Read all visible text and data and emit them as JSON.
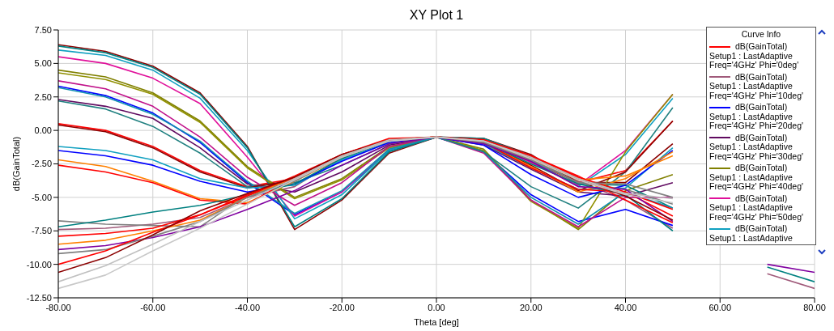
{
  "chart_data": {
    "type": "line",
    "title": "XY Plot 1",
    "xlabel": "Theta [deg]",
    "ylabel": "dB(GainTotal)",
    "legend_title": "Curve Info",
    "legend": "top right",
    "grid": true,
    "x": [
      -80,
      -70,
      -60,
      -50,
      -40,
      -30,
      -20,
      -10,
      0,
      10,
      20,
      30,
      40,
      50,
      60,
      70,
      80
    ],
    "xlim": [
      -80,
      80
    ],
    "xticks": [
      {
        "value": -80,
        "label": "-80.00"
      },
      {
        "value": -60,
        "label": "-60.00"
      },
      {
        "value": -40,
        "label": "-40.00"
      },
      {
        "value": -20,
        "label": "-20.00"
      },
      {
        "value": 0,
        "label": "0.00"
      },
      {
        "value": 20,
        "label": "20.00"
      },
      {
        "value": 40,
        "label": "40.00"
      },
      {
        "value": 60,
        "label": "60.00"
      },
      {
        "value": 80,
        "label": "80.00"
      }
    ],
    "ylim": [
      -12.5,
      7.5
    ],
    "yticks": [
      {
        "value": -12.5,
        "label": "-12.50"
      },
      {
        "value": -10,
        "label": "-10.00"
      },
      {
        "value": -7.5,
        "label": "-7.50"
      },
      {
        "value": -5,
        "label": "-5.00"
      },
      {
        "value": -2.5,
        "label": "-2.50"
      },
      {
        "value": 0,
        "label": "0.00"
      },
      {
        "value": 2.5,
        "label": "2.50"
      },
      {
        "value": 5,
        "label": "5.00"
      },
      {
        "value": 7.5,
        "label": "7.50"
      }
    ],
    "series": [
      {
        "name": "dB(GainTotal)\nSetup1 : LastAdaptive\nFreq='4GHz' Phi='0deg'",
        "color": "#ff0000",
        "values": [
          0.5,
          0.0,
          -1.2,
          -3.0,
          -4.2,
          -3.6,
          -1.9,
          -0.7,
          -0.5,
          -0.8,
          -2.3,
          -3.9,
          -3.0,
          0.7,
          null,
          null,
          null
        ]
      },
      {
        "name": "dB(GainTotal)\nSetup1 : LastAdaptive\nFreq='4GHz' Phi='10deg'",
        "color": "#a05a7a",
        "values": [
          -7.4,
          -7.3,
          -7.0,
          -6.5,
          -5.0,
          -4.2,
          -2.0,
          -0.8,
          -0.5,
          -0.8,
          -2.0,
          -3.8,
          -5.2,
          -7.3,
          null,
          -10.7,
          -11.8
        ]
      },
      {
        "name": "dB(GainTotal)\nSetup1 : LastAdaptive\nFreq='4GHz' Phi='20deg'",
        "color": "#0000ff",
        "values": [
          3.3,
          2.6,
          1.3,
          -0.9,
          -3.9,
          -6.3,
          -4.6,
          -1.5,
          -0.5,
          -1.6,
          -4.8,
          -6.8,
          -5.9,
          -7.1,
          null,
          null,
          null
        ]
      },
      {
        "name": "dB(GainTotal)\nSetup1 : LastAdaptive\nFreq='4GHz' Phi='30deg'",
        "color": "#600a60",
        "values": [
          2.3,
          1.8,
          0.9,
          -1.3,
          -4.0,
          -4.6,
          -3.1,
          -1.1,
          -0.5,
          -1.1,
          -2.9,
          -4.6,
          -4.9,
          -3.9,
          null,
          null,
          null
        ]
      },
      {
        "name": "dB(GainTotal)\nSetup1 : LastAdaptive\nFreq='4GHz' Phi='40deg'",
        "color": "#808000",
        "values": [
          4.5,
          4.0,
          2.8,
          0.7,
          -2.7,
          -5.0,
          -3.6,
          -1.2,
          -0.5,
          -1.4,
          -5.2,
          -7.4,
          -4.5,
          -3.3,
          null,
          null,
          null
        ]
      },
      {
        "name": "dB(GainTotal)\nSetup1 : LastAdaptive\nFreq='4GHz' Phi='50deg'",
        "color": "#e0109a",
        "values": [
          5.5,
          5.0,
          3.9,
          2.0,
          -2.0,
          -6.4,
          -4.6,
          -1.4,
          -0.5,
          -0.8,
          -2.4,
          -4.1,
          -1.5,
          2.7,
          null,
          null,
          null
        ]
      },
      {
        "name": "dB(GainTotal)\nSetup1 : LastAdaptive",
        "color": "#10a0c0",
        "values": [
          6.0,
          5.6,
          4.5,
          2.4,
          -1.5,
          -6.6,
          -4.8,
          -1.5,
          -0.5,
          -0.7,
          -2.2,
          -4.2,
          -1.8,
          2.4,
          null,
          null,
          null
        ]
      },
      {
        "color": "#8b0000",
        "values": [
          6.4,
          5.9,
          4.8,
          2.8,
          -1.2,
          -7.4,
          -5.2,
          -1.7,
          -0.5,
          -0.6,
          -1.8,
          -3.9,
          -3.9,
          -1.0,
          null,
          null,
          null
        ]
      },
      {
        "color": "#008080",
        "values": [
          6.3,
          5.8,
          4.7,
          2.7,
          -1.3,
          -7.2,
          -5.1,
          -1.6,
          -0.5,
          -0.6,
          -1.9,
          -4.0,
          -4.1,
          -5.8,
          null,
          null,
          null
        ]
      },
      {
        "color": "#909000",
        "values": [
          4.3,
          3.8,
          2.7,
          0.6,
          -2.8,
          -5.1,
          -3.7,
          -1.3,
          -0.5,
          -1.5,
          -5.3,
          -7.3,
          -1.6,
          2.7,
          null,
          null,
          null
        ]
      },
      {
        "color": "#c0108a",
        "values": [
          3.7,
          3.1,
          1.8,
          -0.5,
          -3.5,
          -5.6,
          -3.9,
          -1.2,
          -0.5,
          -1.7,
          -5.2,
          -7.2,
          -5.0,
          -5.0,
          null,
          null,
          null
        ]
      },
      {
        "color": "#1090b0",
        "values": [
          3.2,
          2.5,
          1.2,
          -0.8,
          -3.8,
          -6.2,
          -4.5,
          -1.4,
          -0.5,
          -1.6,
          -5.0,
          -7.0,
          -4.6,
          -5.8,
          null,
          null,
          null
        ]
      },
      {
        "color": "#208080",
        "values": [
          2.2,
          1.6,
          0.3,
          -1.7,
          -4.2,
          -3.9,
          -2.6,
          -1.0,
          -0.5,
          -1.6,
          -4.2,
          -5.8,
          -3.1,
          1.7,
          null,
          null,
          null
        ]
      },
      {
        "color": "#8b0000",
        "values": [
          0.4,
          -0.1,
          -1.3,
          -3.1,
          -4.3,
          -3.7,
          -2.0,
          -0.8,
          -0.5,
          -0.9,
          -2.6,
          -4.5,
          -3.1,
          0.7,
          null,
          null,
          null
        ]
      },
      {
        "color": "#10a0c0",
        "values": [
          -1.2,
          -1.5,
          -2.2,
          -3.6,
          -4.3,
          -4.1,
          -2.2,
          -0.9,
          -0.5,
          -1.0,
          -2.8,
          -4.4,
          -4.3,
          -1.3,
          null,
          null,
          null
        ]
      },
      {
        "color": "#0000ff",
        "values": [
          -1.5,
          -1.9,
          -2.6,
          -3.8,
          -4.6,
          -4.0,
          -2.3,
          -0.9,
          -0.5,
          -1.1,
          -3.3,
          -5.0,
          -4.1,
          -1.5,
          null,
          null,
          null
        ]
      },
      {
        "color": "#ff8000",
        "values": [
          -2.2,
          -2.7,
          -3.8,
          -5.1,
          -5.4,
          -3.8,
          -2.0,
          -0.8,
          -0.5,
          -0.9,
          -2.7,
          -4.6,
          -3.6,
          -1.6,
          null,
          null,
          null
        ]
      },
      {
        "color": "#ff0000",
        "values": [
          -2.6,
          -3.1,
          -3.9,
          -5.2,
          -5.5,
          -3.5,
          -1.8,
          -0.7,
          -0.5,
          -0.9,
          -2.8,
          -4.4,
          -4.6,
          -6.4,
          null,
          null,
          null
        ]
      },
      {
        "color": "#808080",
        "values": [
          -6.75,
          -7.0,
          -7.1,
          -7.2,
          -4.8,
          -3.8,
          -1.9,
          -0.7,
          -0.5,
          -0.8,
          -2.1,
          -3.9,
          -4.4,
          -5.5,
          null,
          null,
          null
        ]
      },
      {
        "color": "#008080",
        "values": [
          -7.2,
          -6.7,
          -6.1,
          -5.6,
          -4.8,
          -4.0,
          -2.1,
          -0.8,
          -0.5,
          -0.9,
          -2.5,
          -4.0,
          -4.8,
          -7.5,
          null,
          -10.2,
          -11.3
        ]
      },
      {
        "color": "#ff0000",
        "values": [
          -7.9,
          -7.7,
          -7.3,
          -6.3,
          -4.9,
          -3.4,
          -1.8,
          -0.6,
          -0.5,
          -0.7,
          -1.9,
          -3.5,
          -4.6,
          -5.9,
          null,
          null,
          null
        ]
      },
      {
        "color": "#ff8000",
        "values": [
          -8.5,
          -8.2,
          -7.5,
          -6.7,
          -5.0,
          -3.5,
          -1.9,
          -0.7,
          -0.5,
          -0.8,
          -2.1,
          -3.7,
          -3.4,
          -1.9,
          null,
          null,
          null
        ]
      },
      {
        "color": "#8000a0",
        "values": [
          -8.9,
          -8.6,
          -8.0,
          -7.2,
          -5.9,
          -4.5,
          -2.6,
          -1.0,
          -0.5,
          -1.0,
          -2.3,
          -4.2,
          -4.4,
          -6.8,
          null,
          -10.0,
          -10.6
        ]
      },
      {
        "color": "#808080",
        "values": [
          -9.2,
          -8.9,
          -7.9,
          -6.8,
          -5.0,
          -3.7,
          -2.0,
          -0.8,
          -0.5,
          -0.9,
          -2.2,
          -3.9,
          -4.0,
          -5.0,
          null,
          null,
          null
        ]
      },
      {
        "color": "#ff0000",
        "values": [
          -10.0,
          -9.0,
          -7.6,
          -6.3,
          -4.8,
          -3.5,
          -1.8,
          -0.7,
          -0.5,
          -0.7,
          -1.9,
          -3.4,
          -5.2,
          -6.9,
          null,
          null,
          null
        ]
      },
      {
        "color": "#8b0000",
        "values": [
          -10.6,
          -9.5,
          -7.8,
          -6.0,
          -4.7,
          -3.5,
          -1.8,
          -0.7,
          -0.5,
          -0.8,
          -2.0,
          -3.6,
          -4.9,
          -6.7,
          null,
          null,
          null
        ]
      },
      {
        "color": "#c0c0c0",
        "values": [
          -11.3,
          -10.1,
          -8.5,
          -6.8,
          -5.2,
          -3.6,
          -1.9,
          -0.7,
          -0.5,
          -0.8,
          -2.0,
          -3.6,
          -4.7,
          -5.1,
          null,
          null,
          null
        ]
      },
      {
        "color": "#c8c8c8",
        "values": [
          -11.8,
          -10.8,
          -9.0,
          -7.3,
          -5.5,
          -3.7,
          -2.0,
          -0.8,
          -0.5,
          -0.8,
          -2.1,
          -3.7,
          -4.8,
          -5.4,
          null,
          null,
          null
        ]
      }
    ]
  }
}
